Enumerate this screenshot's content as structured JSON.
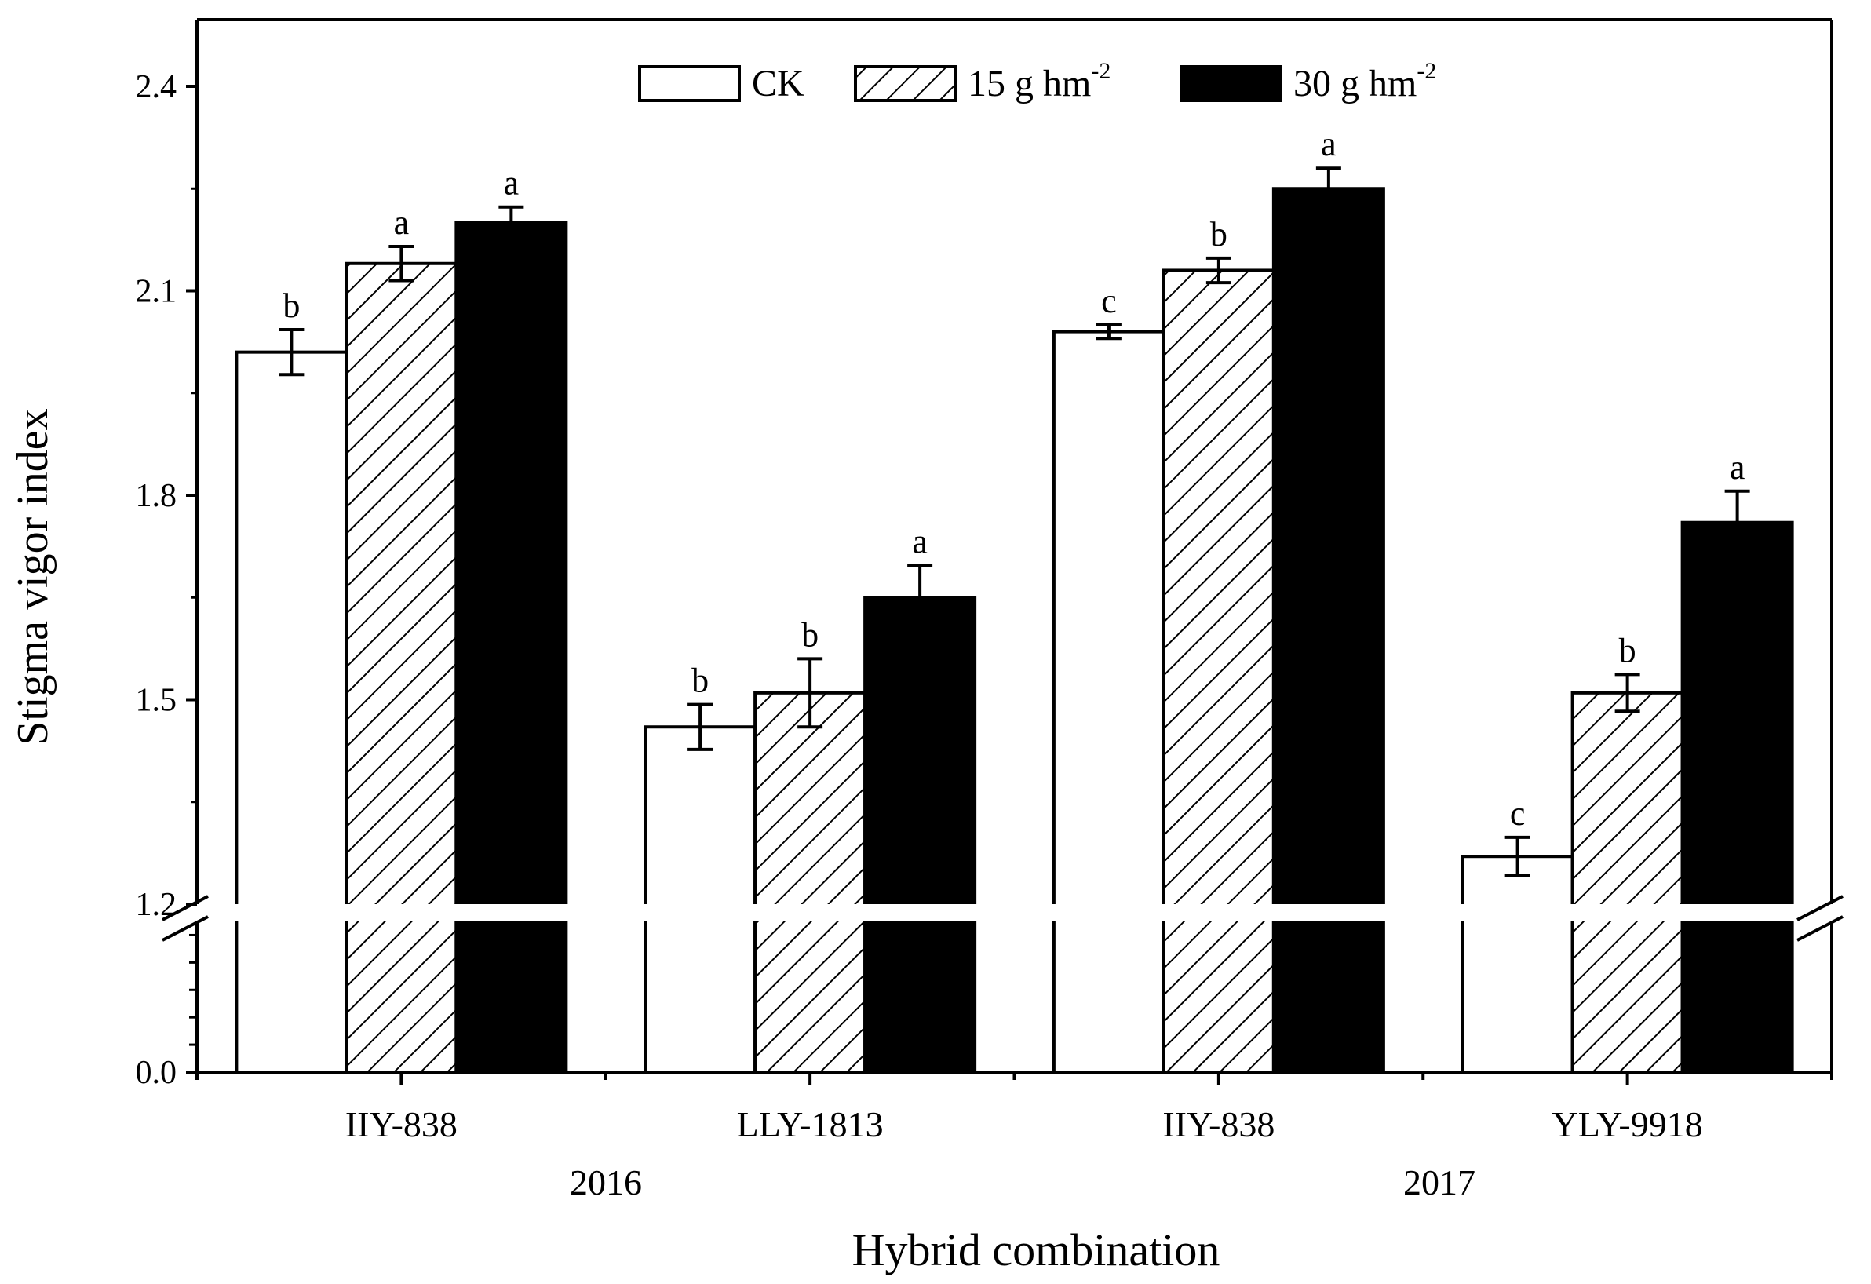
{
  "chart_data": {
    "type": "bar",
    "ylabel": "Stigma vigor index",
    "xlabel": "Hybrid combination",
    "y_break": [
      0.0,
      1.2
    ],
    "ylim_lower": [
      0.0,
      0.25
    ],
    "ylim_upper": [
      1.2,
      2.5
    ],
    "yticks": [
      {
        "value": 0.0,
        "label": "0.0"
      },
      {
        "value": 1.2,
        "label": "1.2"
      },
      {
        "value": 1.5,
        "label": "1.5"
      },
      {
        "value": 1.8,
        "label": "1.8"
      },
      {
        "value": 2.1,
        "label": "2.1"
      },
      {
        "value": 2.4,
        "label": "2.4"
      }
    ],
    "categories": [
      "IIY-838",
      "LLY-1813",
      "IIY-838",
      "YLY-9918"
    ],
    "groups": [
      {
        "label": "2016",
        "categories": [
          0,
          1
        ]
      },
      {
        "label": "2017",
        "categories": [
          2,
          3
        ]
      }
    ],
    "legend": [
      {
        "label": "CK",
        "sup": ""
      },
      {
        "label": "15 g hm",
        "sup": "-2"
      },
      {
        "label": "30 g hm",
        "sup": "-2"
      }
    ],
    "series": [
      {
        "name": "CK",
        "fill": "#ffffff",
        "pattern": "none",
        "values": [
          2.01,
          1.46,
          2.04,
          1.27
        ],
        "errors": [
          0.033,
          0.033,
          0.01,
          0.028
        ],
        "letters": [
          "b",
          "b",
          "c",
          "c"
        ]
      },
      {
        "name": "15 g hm-2",
        "fill": "#ffffff",
        "pattern": "hatch",
        "values": [
          2.14,
          1.51,
          2.13,
          1.51
        ],
        "errors": [
          0.025,
          0.05,
          0.018,
          0.027
        ],
        "letters": [
          "a",
          "b",
          "b",
          "b"
        ]
      },
      {
        "name": "30 g hm-2",
        "fill": "#000000",
        "pattern": "solid",
        "values": [
          2.2,
          1.65,
          2.25,
          1.76
        ],
        "errors": [
          0.023,
          0.047,
          0.03,
          0.046
        ],
        "letters": [
          "a",
          "a",
          "a",
          "a"
        ]
      }
    ]
  }
}
